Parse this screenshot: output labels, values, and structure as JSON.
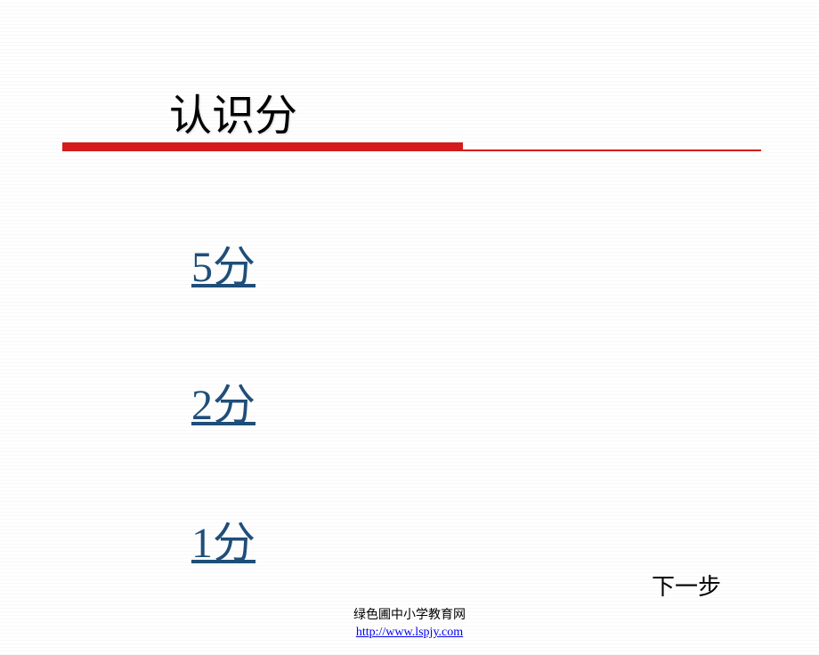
{
  "slide": {
    "title": "认识分",
    "links": [
      {
        "label": "5分"
      },
      {
        "label": "2分"
      },
      {
        "label": "1分"
      }
    ],
    "next_label": "下一步",
    "footer_text": "绿色圃中小学教育网",
    "footer_url": "http://www.lspjy.com"
  },
  "style": {
    "background_color": "#ffffff",
    "title_color": "#000000",
    "title_fontsize": 48,
    "divider_color": "#d41c1c",
    "divider_thick_height": 10,
    "divider_thick_width": 450,
    "divider_thin_height": 2,
    "divider_thin_width": 785,
    "link_color": "#1f4e79",
    "link_fontsize": 48,
    "next_fontsize": 26,
    "footer_fontsize": 14,
    "footer_url_color": "#0000ee"
  }
}
